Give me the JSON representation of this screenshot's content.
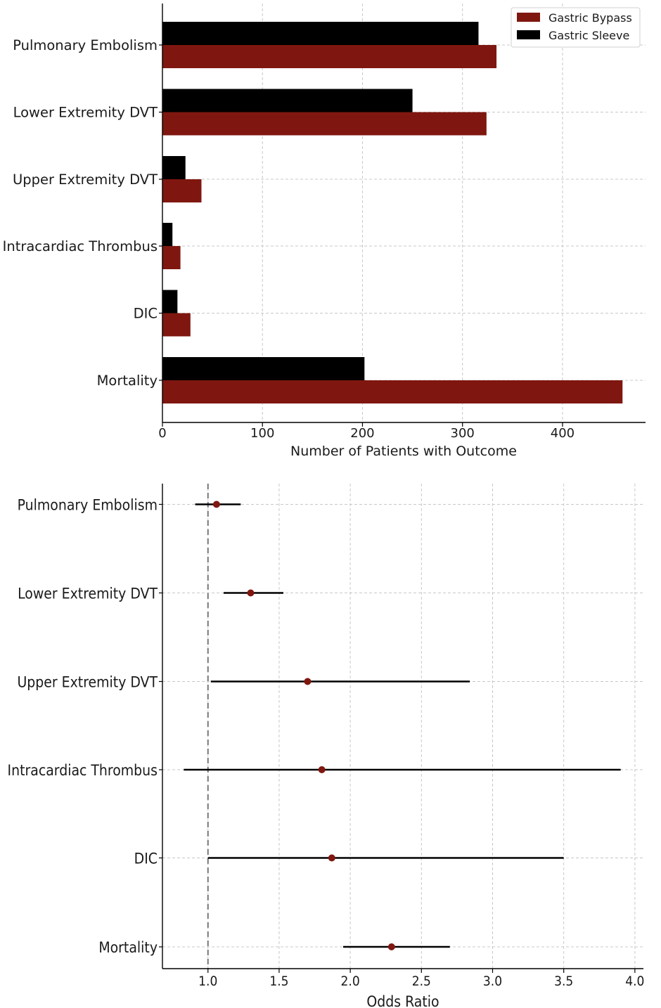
{
  "colors": {
    "bypass": "#7f1710",
    "sleeve": "#000000",
    "marker": "#7f1710",
    "grid": "#c8c8c8",
    "reference_line": "#777777"
  },
  "chart_data": [
    {
      "type": "bar",
      "orientation": "horizontal",
      "categories": [
        "Pulmonary Embolism",
        "Lower Extremity DVT",
        "Upper Extremity DVT",
        "Intracardiac Thrombus",
        "DIC",
        "Mortality"
      ],
      "series": [
        {
          "name": "Gastric Bypass",
          "color": "#7f1710",
          "values": [
            334,
            324,
            39,
            18,
            28,
            460
          ]
        },
        {
          "name": "Gastric Sleeve",
          "color": "#000000",
          "values": [
            316,
            250,
            23,
            10,
            15,
            202
          ]
        }
      ],
      "xlabel": "Number of Patients with Outcome",
      "ylabel": "",
      "xlim": [
        0,
        483
      ],
      "xticks": [
        0,
        100,
        200,
        300,
        400
      ],
      "grid": true,
      "legend": "top-right"
    },
    {
      "type": "scatter",
      "subtype": "forest-plot",
      "categories": [
        "Pulmonary Embolism",
        "Lower Extremity DVT",
        "Upper Extremity DVT",
        "Intracardiac Thrombus",
        "DIC",
        "Mortality"
      ],
      "odds_ratio": [
        1.06,
        1.3,
        1.7,
        1.8,
        1.87,
        2.29
      ],
      "ci_lower": [
        0.91,
        1.11,
        1.02,
        0.83,
        1.0,
        1.95
      ],
      "ci_upper": [
        1.23,
        1.53,
        2.84,
        3.9,
        3.5,
        2.7
      ],
      "reference_line": 1.0,
      "xlabel": "Odds Ratio",
      "ylabel": "",
      "xlim": [
        0.68,
        4.06
      ],
      "xticks": [
        1.0,
        1.5,
        2.0,
        2.5,
        3.0,
        3.5,
        4.0
      ],
      "xtick_labels": [
        "1.0",
        "1.5",
        "2.0",
        "2.5",
        "3.0",
        "3.5",
        "4.0"
      ],
      "grid": true
    }
  ]
}
